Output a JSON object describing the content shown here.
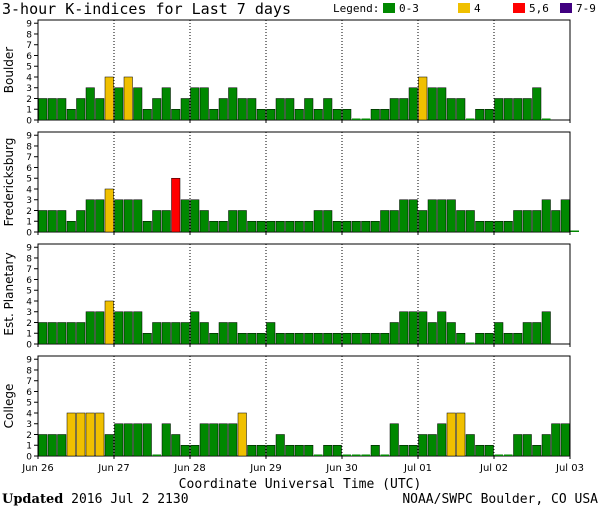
{
  "title": "3-hour K-indices for Last 7 days",
  "legend": {
    "label": "Legend:",
    "items": [
      {
        "label": "0-3",
        "color": "#008800"
      },
      {
        "label": "4",
        "color": "#f0c000"
      },
      {
        "label": "5,6",
        "color": "#ff0000"
      },
      {
        "label": "7-9",
        "color": "#400080"
      }
    ]
  },
  "xlabel": "Coordinate Universal Time (UTC)",
  "footer": {
    "updated_label": "Updated",
    "updated_value": "2016 Jul  2 2130",
    "source": "NOAA/SWPC Boulder, CO USA"
  },
  "chart_data": [
    {
      "type": "bar",
      "ylabel": "Boulder",
      "ylim": [
        0,
        9
      ],
      "yticks": [
        "0",
        "1",
        "2",
        "3",
        "4",
        "5",
        "6",
        "7",
        "8",
        "9"
      ],
      "x_tick_labels": [
        "Jun 26",
        "Jun 27",
        "Jun 28",
        "Jun 29",
        "Jun 30",
        "Jul 01",
        "Jul 02",
        "Jul 03"
      ],
      "values": [
        2,
        2,
        2,
        1,
        2,
        3,
        2,
        4,
        3,
        4,
        3,
        1,
        2,
        3,
        1,
        2,
        3,
        3,
        1,
        2,
        3,
        2,
        2,
        1,
        1,
        2,
        2,
        1,
        2,
        1,
        2,
        1,
        1,
        0,
        0,
        1,
        1,
        2,
        2,
        3,
        4,
        3,
        3,
        2,
        2,
        0,
        1,
        1,
        2,
        2,
        2,
        2,
        3,
        0
      ]
    },
    {
      "type": "bar",
      "ylabel": "Fredericksburg",
      "ylim": [
        0,
        9
      ],
      "yticks": [
        "0",
        "1",
        "2",
        "3",
        "4",
        "5",
        "6",
        "7",
        "8",
        "9"
      ],
      "x_tick_labels": [
        "Jun 26",
        "Jun 27",
        "Jun 28",
        "Jun 29",
        "Jun 30",
        "Jul 01",
        "Jul 02",
        "Jul 03"
      ],
      "values": [
        2,
        2,
        2,
        1,
        2,
        3,
        3,
        4,
        3,
        3,
        3,
        1,
        2,
        2,
        5,
        3,
        3,
        2,
        1,
        1,
        2,
        2,
        1,
        1,
        1,
        1,
        1,
        1,
        1,
        2,
        2,
        1,
        1,
        1,
        1,
        1,
        2,
        2,
        3,
        3,
        2,
        3,
        3,
        3,
        2,
        2,
        1,
        1,
        1,
        1,
        2,
        2,
        2,
        3,
        2,
        3,
        0
      ]
    },
    {
      "type": "bar",
      "ylabel": "Est. Planetary",
      "ylim": [
        0,
        9
      ],
      "yticks": [
        "0",
        "1",
        "2",
        "3",
        "4",
        "5",
        "6",
        "7",
        "8",
        "9"
      ],
      "x_tick_labels": [
        "Jun 26",
        "Jun 27",
        "Jun 28",
        "Jun 29",
        "Jun 30",
        "Jul 01",
        "Jul 02",
        "Jul 03"
      ],
      "values": [
        2,
        2,
        2,
        2,
        2,
        3,
        3,
        4,
        3,
        3,
        3,
        1,
        2,
        2,
        2,
        2,
        3,
        2,
        1,
        2,
        2,
        1,
        1,
        1,
        2,
        1,
        1,
        1,
        1,
        1,
        1,
        1,
        1,
        1,
        1,
        1,
        1,
        2,
        3,
        3,
        3,
        2,
        3,
        2,
        1,
        0,
        1,
        1,
        2,
        1,
        1,
        2,
        2,
        3
      ]
    },
    {
      "type": "bar",
      "ylabel": "College",
      "ylim": [
        0,
        9
      ],
      "yticks": [
        "0",
        "1",
        "2",
        "3",
        "4",
        "5",
        "6",
        "7",
        "8",
        "9"
      ],
      "x_tick_labels": [
        "Jun 26",
        "Jun 27",
        "Jun 28",
        "Jun 29",
        "Jun 30",
        "Jul 01",
        "Jul 02",
        "Jul 03"
      ],
      "values": [
        2,
        2,
        2,
        4,
        4,
        4,
        4,
        2,
        3,
        3,
        3,
        3,
        0,
        3,
        2,
        1,
        1,
        3,
        3,
        3,
        3,
        4,
        1,
        1,
        1,
        2,
        1,
        1,
        1,
        0,
        1,
        1,
        0,
        0,
        0,
        1,
        0,
        3,
        1,
        1,
        2,
        2,
        3,
        4,
        4,
        2,
        1,
        1,
        0,
        0,
        2,
        2,
        1,
        2,
        3,
        3
      ]
    }
  ]
}
